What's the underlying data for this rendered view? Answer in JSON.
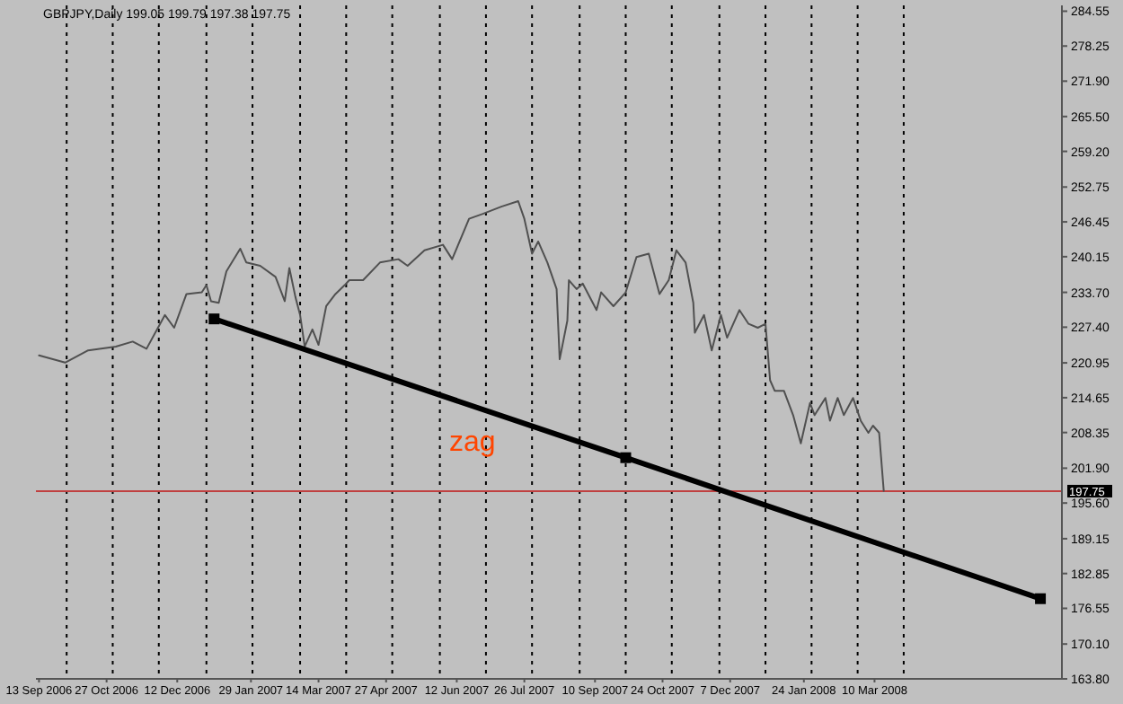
{
  "chart_data": {
    "type": "line",
    "title": "GBPJPY,Daily  199.05 199.79 197.38 197.75",
    "annotations": [
      "zag"
    ],
    "series": [
      {
        "color": "#505050",
        "marker": "none",
        "x": [
          "2006-09-13",
          "2006-09-30",
          "2006-10-15",
          "2006-11-02",
          "2006-11-13",
          "2006-11-22",
          "2006-12-04",
          "2006-12-10",
          "2006-12-18",
          "2006-12-28",
          "2006-12-31",
          "2007-01-03",
          "2007-01-08",
          "2007-01-13",
          "2007-01-22",
          "2007-01-26",
          "2007-02-04",
          "2007-02-14",
          "2007-02-20",
          "2007-02-23",
          "2007-02-27",
          "2007-03-02",
          "2007-03-05",
          "2007-03-10",
          "2007-03-14",
          "2007-03-19",
          "2007-03-25",
          "2007-03-31",
          "2007-04-03",
          "2007-04-12",
          "2007-04-23",
          "2007-05-05",
          "2007-05-11",
          "2007-05-22",
          "2007-06-03",
          "2007-06-09",
          "2007-06-20",
          "2007-06-29",
          "2007-07-11",
          "2007-07-22",
          "2007-07-26",
          "2007-07-31",
          "2007-08-04",
          "2007-08-10",
          "2007-08-16",
          "2007-08-18",
          "2007-08-23",
          "2007-08-24",
          "2007-08-29",
          "2007-09-02",
          "2007-09-11",
          "2007-09-14",
          "2007-09-22",
          "2007-09-30",
          "2007-10-07",
          "2007-10-15",
          "2007-10-22",
          "2007-10-28",
          "2007-11-02",
          "2007-11-08",
          "2007-11-13",
          "2007-11-14",
          "2007-11-20",
          "2007-11-25",
          "2007-12-01",
          "2007-12-05",
          "2007-12-13",
          "2007-12-19",
          "2007-12-25",
          "2007-12-30",
          "2008-01-02",
          "2008-01-05",
          "2008-01-11",
          "2008-01-17",
          "2008-01-22",
          "2008-01-28",
          "2008-01-31",
          "2008-02-07",
          "2008-02-10",
          "2008-02-15",
          "2008-02-19",
          "2008-02-25",
          "2008-03-01",
          "2008-03-06",
          "2008-03-09",
          "2008-03-13",
          "2008-03-16"
        ],
        "values": [
          222.3,
          221.0,
          223.2,
          223.9,
          224.8,
          223.5,
          229.6,
          227.3,
          233.4,
          233.7,
          235.0,
          232.1,
          231.8,
          237.5,
          241.6,
          239.1,
          238.5,
          236.5,
          232.1,
          238.1,
          232.8,
          229.6,
          223.9,
          227.0,
          224.2,
          231.2,
          233.4,
          235.0,
          235.9,
          235.9,
          239.1,
          239.7,
          238.5,
          241.3,
          242.3,
          239.7,
          247.0,
          247.9,
          249.2,
          250.2,
          247.0,
          240.7,
          242.9,
          239.1,
          234.3,
          221.6,
          228.6,
          235.9,
          234.3,
          235.3,
          230.5,
          233.7,
          231.2,
          233.7,
          240.1,
          240.7,
          233.4,
          235.9,
          241.3,
          239.1,
          231.8,
          226.4,
          229.6,
          223.2,
          229.6,
          225.5,
          230.5,
          228.0,
          227.3,
          228.0,
          217.8,
          215.9,
          215.9,
          211.5,
          206.4,
          213.7,
          211.5,
          214.6,
          210.5,
          214.6,
          211.5,
          214.6,
          210.5,
          208.3,
          209.6,
          208.3,
          197.8
        ]
      },
      {
        "color": "#000000",
        "marker": "square",
        "x": [
          "2007-01-05",
          "2007-09-30",
          "2008-06-26"
        ],
        "values": [
          228.9,
          203.8,
          178.3
        ]
      }
    ],
    "xlim": [
      "2006-09-11",
      "2008-07-10"
    ],
    "xticks": [
      {
        "value": "2006-09-13",
        "label": "13 Sep 2006"
      },
      {
        "value": "2006-10-01",
        "label": null
      },
      {
        "value": "2006-10-27",
        "label": "27 Oct 2006"
      },
      {
        "value": "2006-10-31",
        "label": null
      },
      {
        "value": "2006-11-30",
        "label": null
      },
      {
        "value": "2006-12-12",
        "label": "12 Dec 2006"
      },
      {
        "value": "2006-12-31",
        "label": null
      },
      {
        "value": "2007-01-29",
        "label": "29 Jan 2007"
      },
      {
        "value": "2007-01-30",
        "label": null
      },
      {
        "value": "2007-03-02",
        "label": null
      },
      {
        "value": "2007-03-14",
        "label": "14 Mar 2007"
      },
      {
        "value": "2007-04-01",
        "label": null
      },
      {
        "value": "2007-04-27",
        "label": "27 Apr 2007"
      },
      {
        "value": "2007-05-01",
        "label": null
      },
      {
        "value": "2007-06-01",
        "label": null
      },
      {
        "value": "2007-06-12",
        "label": "12 Jun 2007"
      },
      {
        "value": "2007-07-01",
        "label": null
      },
      {
        "value": "2007-07-26",
        "label": "26 Jul 2007"
      },
      {
        "value": "2007-07-31",
        "label": null
      },
      {
        "value": "2007-08-31",
        "label": null
      },
      {
        "value": "2007-09-10",
        "label": "10 Sep 2007"
      },
      {
        "value": "2007-09-30",
        "label": null
      },
      {
        "value": "2007-10-24",
        "label": "24 Oct 2007"
      },
      {
        "value": "2007-10-30",
        "label": null
      },
      {
        "value": "2007-11-30",
        "label": null
      },
      {
        "value": "2007-12-07",
        "label": "7 Dec 2007"
      },
      {
        "value": "2007-12-30",
        "label": null
      },
      {
        "value": "2008-01-24",
        "label": "24 Jan 2008"
      },
      {
        "value": "2008-01-29",
        "label": null
      },
      {
        "value": "2008-02-28",
        "label": null
      },
      {
        "value": "2008-03-10",
        "label": "10 Mar 2008"
      },
      {
        "value": "2008-03-29",
        "label": null
      }
    ],
    "ylim": [
      163.8,
      285.6
    ],
    "yticks": [
      284.55,
      278.25,
      {
        "value": 271.9,
        "label": "271.90"
      },
      {
        "value": 265.5,
        "label": "265.50"
      },
      {
        "value": 259.2,
        "label": "259.20"
      },
      252.75,
      246.45,
      240.15,
      {
        "value": 233.7,
        "label": "233.70"
      },
      {
        "value": 227.4,
        "label": "227.40"
      },
      220.95,
      214.65,
      208.35,
      {
        "value": 201.9,
        "label": "201.90"
      },
      {
        "value": 195.6,
        "label": "195.60"
      },
      189.15,
      182.85,
      176.55,
      {
        "value": 170.1,
        "label": "170.10"
      },
      {
        "value": 163.8,
        "label": "163.80"
      }
    ],
    "grid": "x",
    "ref_lines": [
      {
        "axis": "y",
        "value": 197.75,
        "label": "197.75",
        "color": "#c04040"
      }
    ]
  }
}
